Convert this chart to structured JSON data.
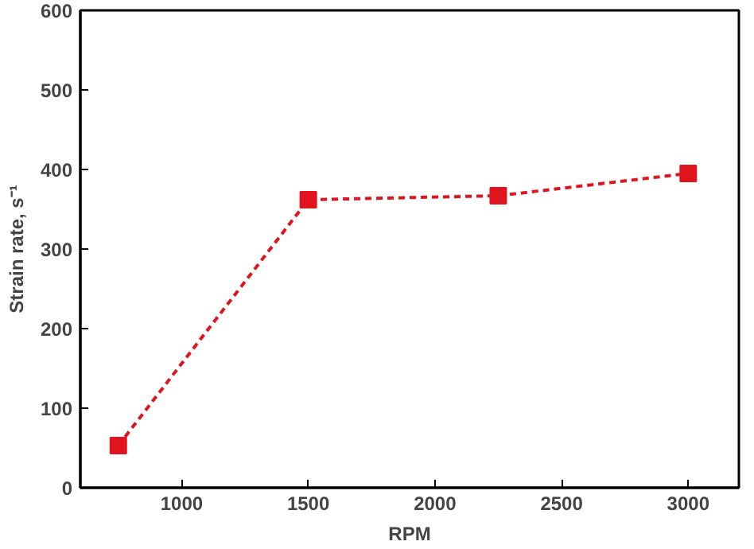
{
  "chart_data": {
    "type": "line",
    "xlabel": "RPM",
    "ylabel": "Strain rate, s⁻¹",
    "x": [
      750,
      1500,
      2250,
      3000
    ],
    "series": [
      {
        "color": "#e0141c",
        "values": [
          53,
          362,
          367,
          395
        ]
      }
    ],
    "xlim": [
      600,
      3200
    ],
    "xticks": [
      1000,
      1500,
      2000,
      2500,
      3000
    ],
    "ylim": [
      0,
      600
    ],
    "yticks": [
      0,
      100,
      200,
      300,
      400,
      500,
      600
    ],
    "grid": false,
    "marker": "square",
    "line_style": "dashed"
  }
}
